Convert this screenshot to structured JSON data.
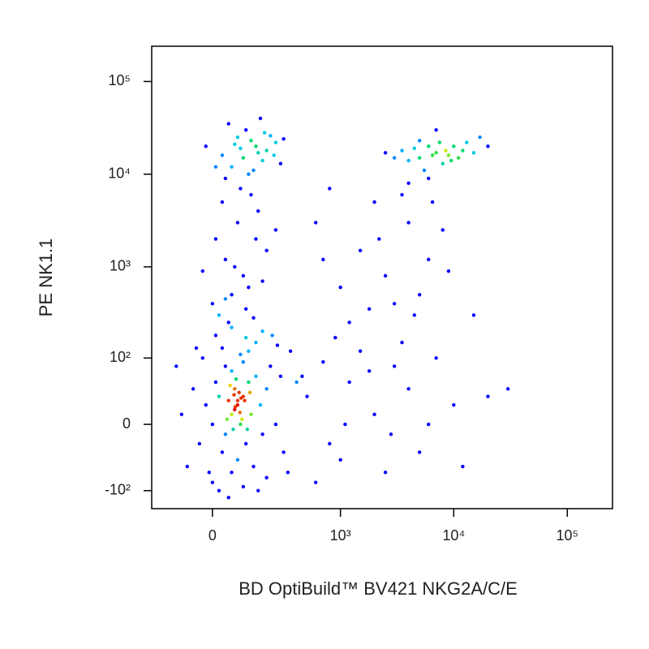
{
  "chart_data": {
    "type": "scatter",
    "xlabel": "BD OptiBuild™ BV421 NKG2A/C/E",
    "ylabel": "PE NK1.1",
    "xscale": "arcsinh",
    "yscale": "arcsinh",
    "xlim": [
      -235,
      250000
    ],
    "ylim": [
      -160,
      240000
    ],
    "xticks": [
      {
        "value": 0,
        "label": "0"
      },
      {
        "value": 1000,
        "label": "10³"
      },
      {
        "value": 10000,
        "label": "10⁴"
      },
      {
        "value": 100000,
        "label": "10⁵"
      }
    ],
    "yticks": [
      {
        "value": -100,
        "label": "-10²"
      },
      {
        "value": 0,
        "label": "0"
      },
      {
        "value": 100,
        "label": "10²"
      },
      {
        "value": 1000,
        "label": "10³"
      },
      {
        "value": 10000,
        "label": "10⁴"
      },
      {
        "value": 100000,
        "label": "10⁵"
      }
    ],
    "color": "#0000ff",
    "x": [
      80,
      60,
      100,
      40,
      120,
      90,
      70,
      50,
      110,
      130,
      20,
      150,
      80,
      60,
      100,
      30,
      140,
      170,
      0,
      10,
      -20,
      -40,
      200,
      180,
      90,
      60,
      120,
      40,
      220,
      250,
      -60,
      -80,
      30,
      150,
      0,
      100,
      280,
      300,
      -30,
      200,
      70,
      85,
      95,
      65,
      75,
      105,
      55,
      115,
      45,
      125,
      80,
      72,
      88,
      92,
      68,
      350,
      400,
      -100,
      -120,
      50,
      160,
      260,
      330,
      20,
      -50,
      230,
      180,
      10,
      110,
      -10,
      20,
      60,
      100,
      40,
      150,
      80,
      0,
      120,
      200,
      30,
      90,
      160,
      50,
      110,
      -30,
      250,
      10,
      70,
      180,
      130,
      60,
      140,
      40,
      100,
      150,
      60,
      200,
      250,
      80,
      120,
      30,
      180,
      220,
      90,
      160,
      40,
      280,
      110,
      -20,
      300,
      140,
      70,
      190,
      130,
      50,
      240,
      10,
      170,
      5000,
      7000,
      4000,
      9000,
      12000,
      6000,
      3500,
      8000,
      10000,
      15000,
      5500,
      6500,
      4500,
      11000,
      7500,
      3000,
      13000,
      20000,
      8500,
      6000,
      9500,
      5000,
      4000,
      17000,
      2500,
      7000,
      600,
      1500,
      2500,
      4000,
      6000,
      1000,
      3000,
      8000,
      2000,
      5000,
      1200,
      700,
      3500,
      9000,
      4500,
      2200,
      6500,
      1800,
      15000,
      800,
      500,
      800,
      1200,
      2000,
      3000,
      5000,
      1500,
      700,
      2500,
      4000,
      10000,
      7000,
      1000,
      3500,
      6000,
      20000,
      600,
      900,
      1800,
      2800,
      30000,
      12000,
      450,
      1100
    ],
    "values": [
      20,
      10,
      30,
      -10,
      50,
      0,
      40,
      25,
      -20,
      10,
      30,
      60,
      -40,
      70,
      90,
      -30,
      -50,
      20,
      0,
      50,
      20,
      -20,
      40,
      -10,
      110,
      -60,
      120,
      80,
      80,
      0,
      40,
      -50,
      130,
      150,
      -80,
      -90,
      60,
      -30,
      100,
      -70,
      15,
      35,
      5,
      -5,
      55,
      25,
      45,
      -5,
      5,
      35,
      25,
      18,
      12,
      28,
      32,
      120,
      50,
      10,
      80,
      -120,
      -100,
      140,
      -60,
      -100,
      130,
      180,
      200,
      180,
      170,
      -60,
      300,
      500,
      800,
      1200,
      2000,
      3000,
      400,
      600,
      1500,
      5000,
      7000,
      4000,
      250,
      350,
      900,
      2500,
      2000,
      1000,
      700,
      6000,
      220,
      280,
      450,
      15000,
      20000,
      12000,
      18000,
      22000,
      25000,
      10000,
      16000,
      14000,
      26000,
      19000,
      17000,
      9000,
      13000,
      30000,
      20000,
      24000,
      11000,
      21000,
      28000,
      23000,
      35000,
      16000,
      12000,
      40000,
      15000,
      17000,
      14000,
      16000,
      18000,
      20000,
      18000,
      13000,
      20000,
      17000,
      11000,
      16000,
      19000,
      15000,
      22000,
      15000,
      22000,
      20000,
      18000,
      9000,
      14000,
      23000,
      8000,
      25000,
      17000,
      30000,
      3000,
      1500,
      800,
      3000,
      1200,
      600,
      400,
      2500,
      5000,
      500,
      250,
      1200,
      6000,
      900,
      300,
      2000,
      5000,
      350,
      300,
      7000,
      30,
      -20,
      50,
      10,
      80,
      -30,
      120,
      90,
      -60,
      40,
      20,
      100,
      -40,
      150,
      0,
      30,
      -80,
      170,
      70,
      -10,
      40,
      -50,
      60,
      0
    ]
  }
}
